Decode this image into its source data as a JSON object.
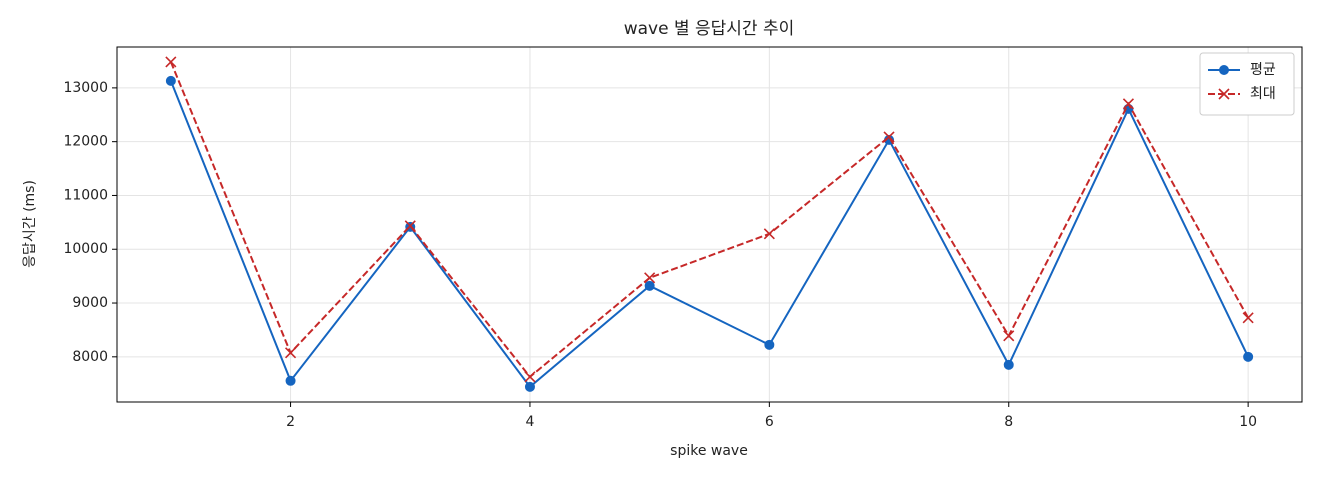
{
  "chart_data": {
    "type": "line",
    "title": "wave 별 응답시간 추이",
    "x_label": "spike wave",
    "y_label": "응답시간 (ms)",
    "x": [
      1,
      2,
      3,
      4,
      5,
      6,
      7,
      8,
      9,
      10
    ],
    "series": [
      {
        "name": "평균",
        "color": "#1565c0",
        "marker": "o",
        "linestyle": "solid",
        "values": [
          13130,
          7554,
          10416,
          7442,
          9320,
          8223,
          12033,
          7851,
          12610,
          8000
        ]
      },
      {
        "name": "최대",
        "color": "#c62828",
        "marker": "x",
        "linestyle": "dashed",
        "values": [
          13483,
          8074,
          10435,
          7628,
          9468,
          10286,
          12089,
          8390,
          12703,
          8725
        ]
      }
    ],
    "xlim": [
      0.55,
      10.45
    ],
    "xticks": [
      2,
      4,
      6,
      8,
      10
    ],
    "ylim": [
      7160,
      13760
    ],
    "yticks": [
      8000,
      9000,
      10000,
      11000,
      12000,
      13000
    ],
    "grid": true,
    "legend": "upper right"
  }
}
